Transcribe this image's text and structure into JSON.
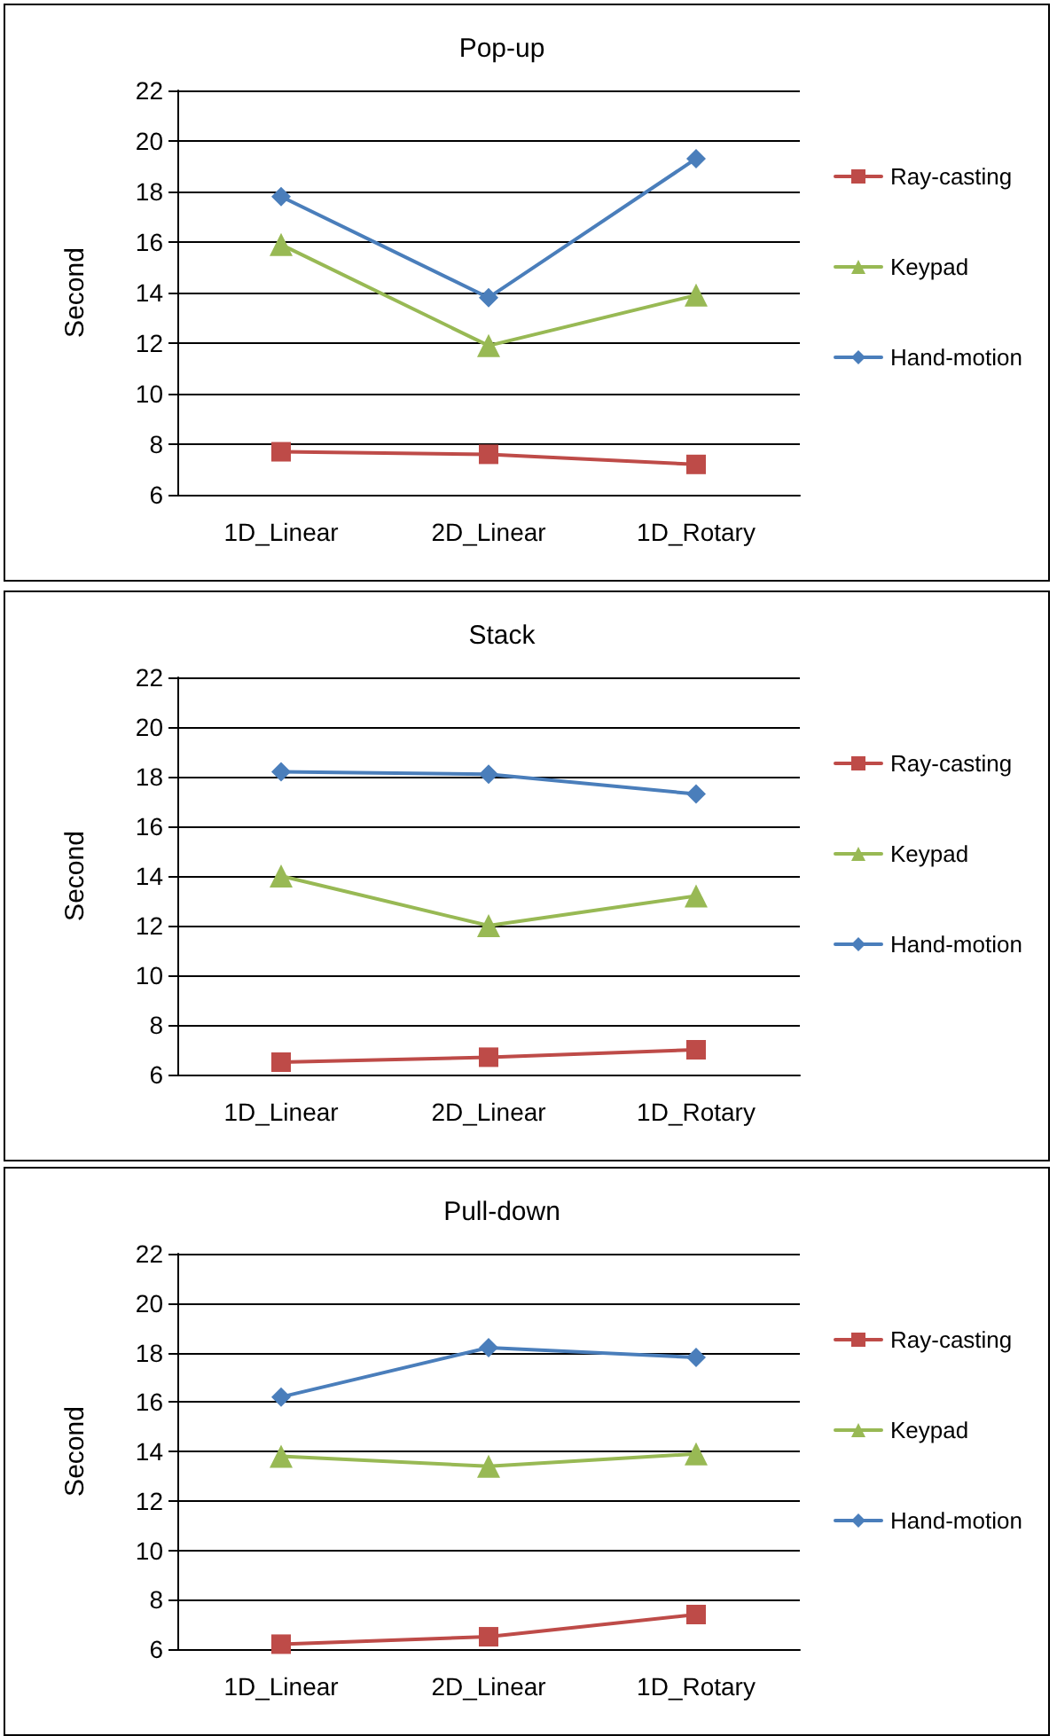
{
  "chart_data": [
    {
      "type": "line",
      "title": "Pop-up",
      "ylabel": "Second",
      "categories": [
        "1D_Linear",
        "2D_Linear",
        "1D_Rotary"
      ],
      "ylim": [
        6,
        22
      ],
      "yticks": [
        6,
        8,
        10,
        12,
        14,
        16,
        18,
        20,
        22
      ],
      "grid": "y",
      "legend": "right",
      "series": [
        {
          "name": "Ray-casting",
          "color": "#be4b48",
          "marker": "square",
          "values": [
            7.7,
            7.6,
            7.2
          ]
        },
        {
          "name": "Keypad",
          "color": "#98b954",
          "marker": "triangle",
          "values": [
            15.9,
            11.9,
            13.9
          ]
        },
        {
          "name": "Hand-motion",
          "color": "#4a7ebb",
          "marker": "diamond",
          "values": [
            17.8,
            13.8,
            19.3
          ]
        }
      ]
    },
    {
      "type": "line",
      "title": "Stack",
      "ylabel": "Second",
      "categories": [
        "1D_Linear",
        "2D_Linear",
        "1D_Rotary"
      ],
      "ylim": [
        6,
        22
      ],
      "yticks": [
        6,
        8,
        10,
        12,
        14,
        16,
        18,
        20,
        22
      ],
      "grid": "y",
      "legend": "right",
      "series": [
        {
          "name": "Ray-casting",
          "color": "#be4b48",
          "marker": "square",
          "values": [
            6.5,
            6.7,
            7.0
          ]
        },
        {
          "name": "Keypad",
          "color": "#98b954",
          "marker": "triangle",
          "values": [
            14.0,
            12.0,
            13.2
          ]
        },
        {
          "name": "Hand-motion",
          "color": "#4a7ebb",
          "marker": "diamond",
          "values": [
            18.2,
            18.1,
            17.3
          ]
        }
      ]
    },
    {
      "type": "line",
      "title": "Pull-down",
      "ylabel": "Second",
      "categories": [
        "1D_Linear",
        "2D_Linear",
        "1D_Rotary"
      ],
      "ylim": [
        6,
        22
      ],
      "yticks": [
        6,
        8,
        10,
        12,
        14,
        16,
        18,
        20,
        22
      ],
      "grid": "y",
      "legend": "right",
      "series": [
        {
          "name": "Ray-casting",
          "color": "#be4b48",
          "marker": "square",
          "values": [
            6.2,
            6.5,
            7.4
          ]
        },
        {
          "name": "Keypad",
          "color": "#98b954",
          "marker": "triangle",
          "values": [
            13.8,
            13.4,
            13.9
          ]
        },
        {
          "name": "Hand-motion",
          "color": "#4a7ebb",
          "marker": "diamond",
          "values": [
            16.2,
            18.2,
            17.8
          ]
        }
      ]
    }
  ]
}
